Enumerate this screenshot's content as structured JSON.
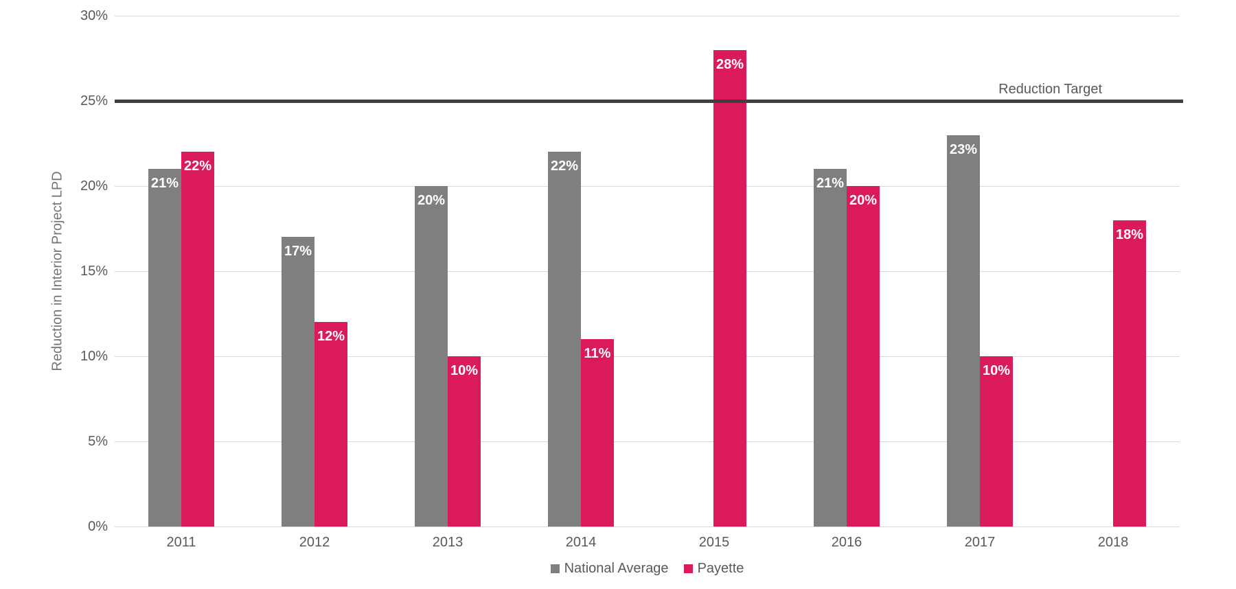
{
  "chart_data": {
    "type": "bar",
    "title": "",
    "categories": [
      "2011",
      "2012",
      "2013",
      "2014",
      "2015",
      "2016",
      "2017",
      "2018"
    ],
    "series": [
      {
        "name": "National Average",
        "color": "#7f7f7f",
        "values": [
          21,
          17,
          20,
          22,
          null,
          21,
          23,
          null
        ]
      },
      {
        "name": "Payette",
        "color": "#da1a5b",
        "values": [
          22,
          12,
          10,
          11,
          28,
          20,
          10,
          18
        ]
      }
    ],
    "data_label_format": "{v}%",
    "xlabel": "",
    "ylabel": "Reduction in Interior Project LPD",
    "ylim": [
      0,
      30
    ],
    "ytick_step": 5,
    "ytick_labels": [
      "0%",
      "5%",
      "10%",
      "15%",
      "20%",
      "25%",
      "30%"
    ],
    "grid": true,
    "legend_position": "bottom",
    "target_line": {
      "label": "Reduction Target",
      "value": 25,
      "color": "#3f3f3f"
    }
  },
  "style": {
    "gridline_color": "#d9d9d9",
    "axis_text_color": "#595959",
    "bar_label_color": "#ffffff",
    "background": "#ffffff"
  }
}
